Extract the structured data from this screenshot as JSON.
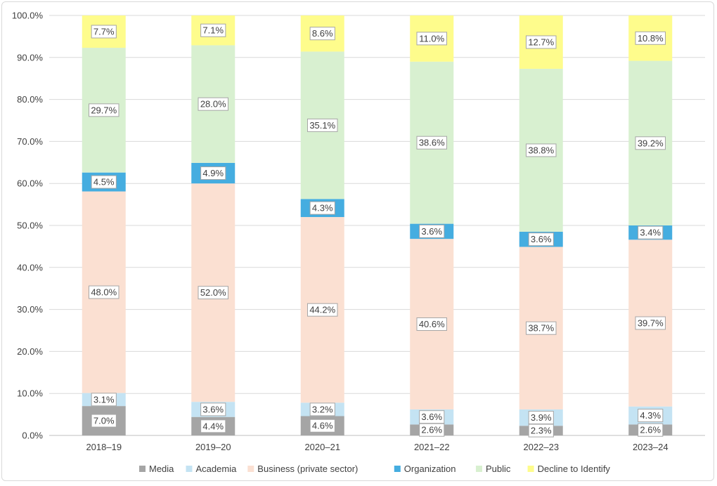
{
  "chart_data": {
    "type": "stacked-bar-100",
    "title": "",
    "xlabel": "",
    "ylabel": "",
    "ylim": [
      0,
      100
    ],
    "y_ticks": [
      "0.0%",
      "10.0%",
      "20.0%",
      "30.0%",
      "40.0%",
      "50.0%",
      "60.0%",
      "70.0%",
      "80.0%",
      "90.0%",
      "100.0%"
    ],
    "categories": [
      "2018–19",
      "2019–20",
      "2020–21",
      "2021–22",
      "2022–23",
      "2023–24"
    ],
    "series": [
      {
        "name": "Media",
        "color": "#a5a5a5",
        "values": [
          7.0,
          4.4,
          4.6,
          2.6,
          2.3,
          2.6
        ]
      },
      {
        "name": "Academia",
        "color": "#c4e3f3",
        "values": [
          3.1,
          3.6,
          3.2,
          3.6,
          3.9,
          4.3
        ]
      },
      {
        "name": "Business (private sector)",
        "color": "#fbe0d2",
        "values": [
          48.0,
          52.0,
          44.2,
          40.6,
          38.7,
          39.7
        ]
      },
      {
        "name": "Organization",
        "color": "#45ade0",
        "values": [
          4.5,
          4.9,
          4.3,
          3.6,
          3.6,
          3.4
        ]
      },
      {
        "name": "Public",
        "color": "#d8f0d0",
        "values": [
          29.7,
          28.0,
          35.1,
          38.6,
          38.8,
          39.2
        ]
      },
      {
        "name": "Decline to Identify",
        "color": "#fefc8c",
        "values": [
          7.7,
          7.1,
          8.6,
          11.0,
          12.7,
          10.8
        ]
      }
    ],
    "gridlines": true,
    "legend_position": "bottom"
  }
}
